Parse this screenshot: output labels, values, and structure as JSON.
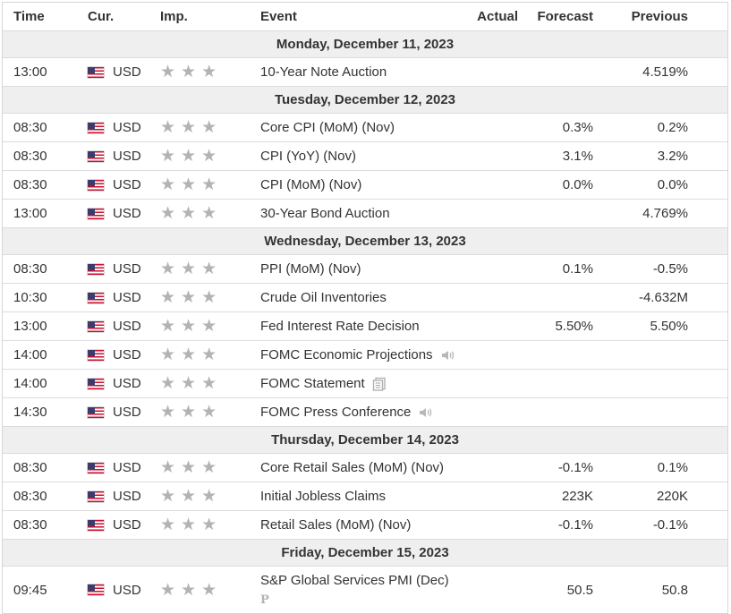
{
  "columns": {
    "time": "Time",
    "currency": "Cur.",
    "importance": "Imp.",
    "event": "Event",
    "actual": "Actual",
    "forecast": "Forecast",
    "previous": "Previous"
  },
  "colors": {
    "date_row_bg": "#efefef",
    "star": "#b3b3b3",
    "border": "#dcdcdc"
  },
  "star_glyph": "★",
  "days": [
    {
      "date": "Monday, December 11, 2023",
      "events": [
        {
          "time": "13:00",
          "currency": "USD",
          "event": "10-Year Note Auction",
          "icon": "",
          "actual": "",
          "forecast": "",
          "previous": "4.519%"
        }
      ]
    },
    {
      "date": "Tuesday, December 12, 2023",
      "events": [
        {
          "time": "08:30",
          "currency": "USD",
          "event": "Core CPI (MoM) (Nov)",
          "icon": "",
          "actual": "",
          "forecast": "0.3%",
          "previous": "0.2%"
        },
        {
          "time": "08:30",
          "currency": "USD",
          "event": "CPI (YoY) (Nov)",
          "icon": "",
          "actual": "",
          "forecast": "3.1%",
          "previous": "3.2%"
        },
        {
          "time": "08:30",
          "currency": "USD",
          "event": "CPI (MoM) (Nov)",
          "icon": "",
          "actual": "",
          "forecast": "0.0%",
          "previous": "0.0%"
        },
        {
          "time": "13:00",
          "currency": "USD",
          "event": "30-Year Bond Auction",
          "icon": "",
          "actual": "",
          "forecast": "",
          "previous": "4.769%"
        }
      ]
    },
    {
      "date": "Wednesday, December 13, 2023",
      "events": [
        {
          "time": "08:30",
          "currency": "USD",
          "event": "PPI (MoM) (Nov)",
          "icon": "",
          "actual": "",
          "forecast": "0.1%",
          "previous": "-0.5%"
        },
        {
          "time": "10:30",
          "currency": "USD",
          "event": "Crude Oil Inventories",
          "icon": "",
          "actual": "",
          "forecast": "",
          "previous": "-4.632M"
        },
        {
          "time": "13:00",
          "currency": "USD",
          "event": "Fed Interest Rate Decision",
          "icon": "",
          "actual": "",
          "forecast": "5.50%",
          "previous": "5.50%"
        },
        {
          "time": "14:00",
          "currency": "USD",
          "event": "FOMC Economic Projections",
          "icon": "speaker-icon",
          "actual": "",
          "forecast": "",
          "previous": ""
        },
        {
          "time": "14:00",
          "currency": "USD",
          "event": "FOMC Statement",
          "icon": "document-icon",
          "actual": "",
          "forecast": "",
          "previous": ""
        },
        {
          "time": "14:30",
          "currency": "USD",
          "event": "FOMC Press Conference",
          "icon": "speaker-icon",
          "actual": "",
          "forecast": "",
          "previous": ""
        }
      ]
    },
    {
      "date": "Thursday, December 14, 2023",
      "events": [
        {
          "time": "08:30",
          "currency": "USD",
          "event": "Core Retail Sales (MoM) (Nov)",
          "icon": "",
          "actual": "",
          "forecast": "-0.1%",
          "previous": "0.1%"
        },
        {
          "time": "08:30",
          "currency": "USD",
          "event": "Initial Jobless Claims",
          "icon": "",
          "actual": "",
          "forecast": "223K",
          "previous": "220K"
        },
        {
          "time": "08:30",
          "currency": "USD",
          "event": "Retail Sales (MoM) (Nov)",
          "icon": "",
          "actual": "",
          "forecast": "-0.1%",
          "previous": "-0.1%"
        }
      ]
    },
    {
      "date": "Friday, December 15, 2023",
      "events": [
        {
          "time": "09:45",
          "currency": "USD",
          "event": "S&P Global Services PMI (Dec)",
          "icon": "preliminary-icon",
          "icon_text": "P",
          "actual": "",
          "forecast": "50.5",
          "previous": "50.8"
        }
      ]
    }
  ]
}
